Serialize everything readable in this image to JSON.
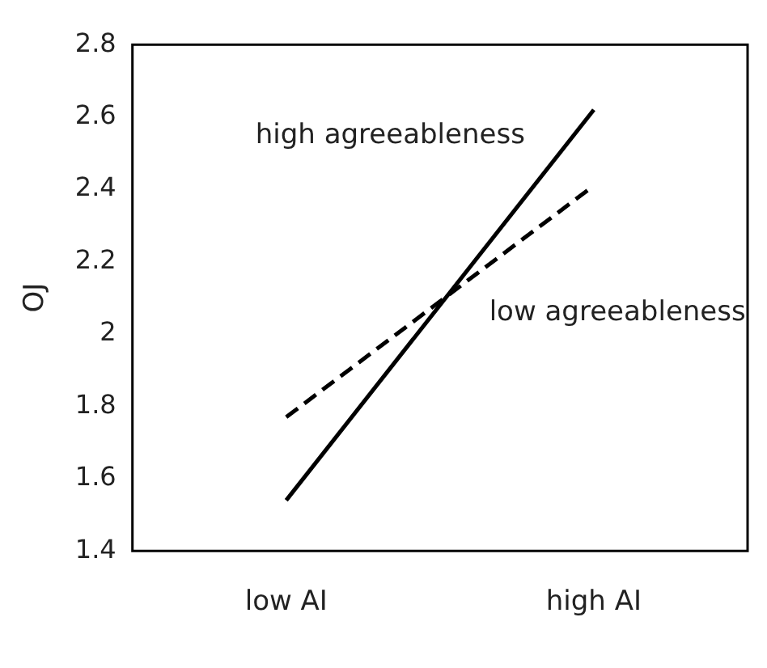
{
  "chart_data": {
    "type": "line",
    "ylabel": "OJ",
    "categories": [
      "low AI",
      "high AI"
    ],
    "series": [
      {
        "name": "high agreeableness",
        "color": "#000000",
        "values": [
          1.54,
          2.62
        ],
        "line_style": "solid"
      },
      {
        "name": "low agreeableness",
        "color": "#000000",
        "values": [
          1.77,
          2.41
        ],
        "line_style": "dashed"
      }
    ],
    "ylim": [
      1.4,
      2.8
    ],
    "yticks": [
      1.4,
      1.6,
      1.8,
      2,
      2.2,
      2.4,
      2.6,
      2.8
    ],
    "grid": false,
    "legend": false,
    "marker": "none"
  }
}
